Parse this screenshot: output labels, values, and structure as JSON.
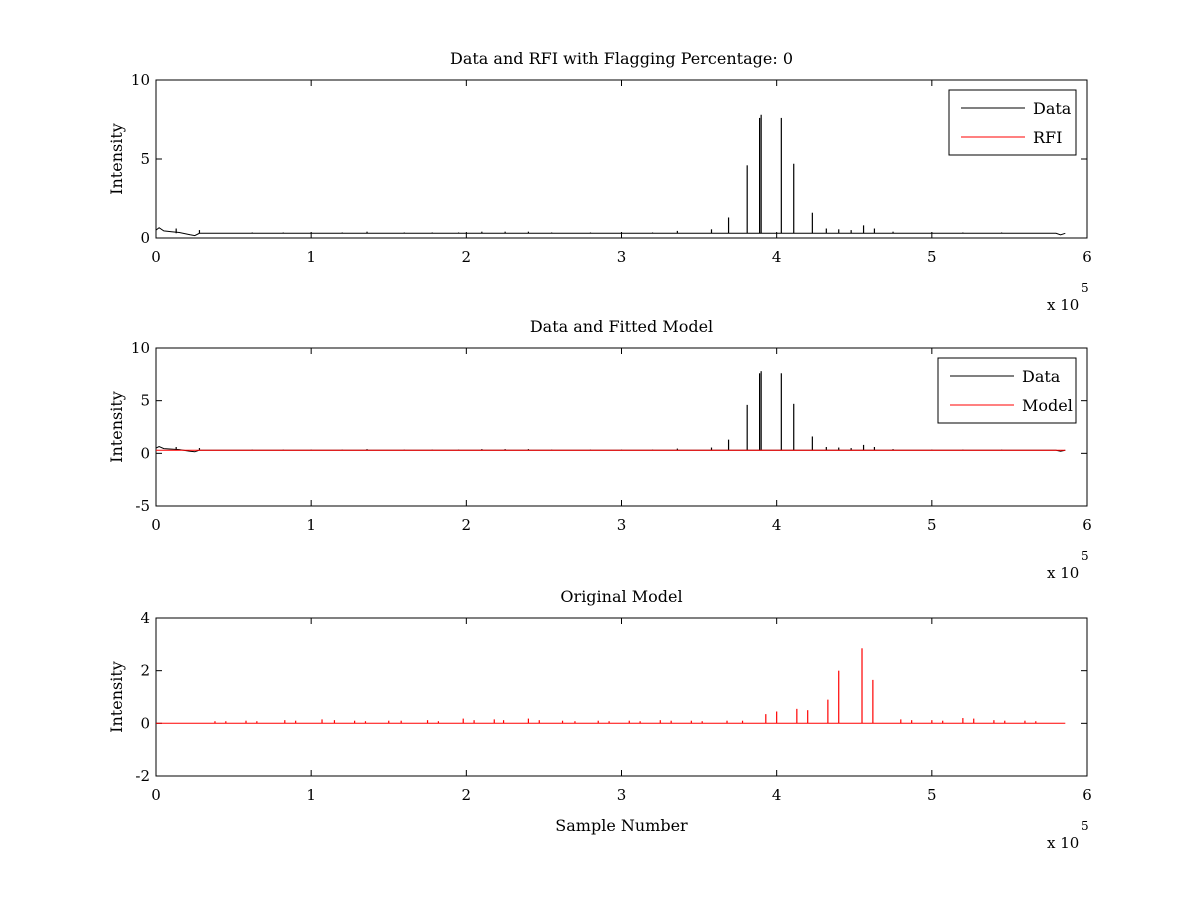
{
  "chart_data": [
    {
      "type": "line",
      "title": "Data and RFI with Flagging Percentage: 0",
      "xlabel": "",
      "ylabel": "Intensity",
      "xlim": [
        0,
        600000
      ],
      "ylim": [
        0,
        10
      ],
      "xticks": [
        0,
        1,
        2,
        3,
        4,
        5,
        6
      ],
      "yticks": [
        0,
        5,
        10
      ],
      "x_exponent_label": "x 10",
      "x_exponent_power": "5",
      "legend": "top-right",
      "grid": false,
      "series": [
        {
          "name": "Data",
          "color": "#000000",
          "baseline": 0.3,
          "points": [
            [
              0,
              0.5
            ],
            [
              2000,
              0.65
            ],
            [
              5000,
              0.45
            ],
            [
              10000,
              0.4
            ],
            [
              15000,
              0.35
            ],
            [
              22000,
              0.2
            ],
            [
              25000,
              0.15
            ],
            [
              28000,
              0.3
            ],
            [
              30000,
              0.3
            ],
            [
              580000,
              0.3
            ],
            [
              583000,
              0.2
            ],
            [
              586000,
              0.3
            ]
          ],
          "spikes": [
            [
              13000,
              0.6
            ],
            [
              28000,
              0.5
            ],
            [
              62000,
              0.35
            ],
            [
              82000,
              0.35
            ],
            [
              100000,
              0.35
            ],
            [
              120000,
              0.35
            ],
            [
              136000,
              0.4
            ],
            [
              160000,
              0.35
            ],
            [
              178000,
              0.35
            ],
            [
              195000,
              0.35
            ],
            [
              210000,
              0.4
            ],
            [
              225000,
              0.4
            ],
            [
              240000,
              0.4
            ],
            [
              255000,
              0.35
            ],
            [
              280000,
              0.35
            ],
            [
              300000,
              0.35
            ],
            [
              320000,
              0.35
            ],
            [
              336000,
              0.45
            ],
            [
              358000,
              0.55
            ],
            [
              369000,
              1.3
            ],
            [
              381000,
              4.6
            ],
            [
              389000,
              7.6
            ],
            [
              390000,
              7.8
            ],
            [
              403000,
              7.6
            ],
            [
              411000,
              4.7
            ],
            [
              423000,
              1.6
            ],
            [
              432000,
              0.6
            ],
            [
              440000,
              0.55
            ],
            [
              448000,
              0.5
            ],
            [
              456000,
              0.8
            ],
            [
              463000,
              0.6
            ],
            [
              475000,
              0.4
            ],
            [
              500000,
              0.35
            ],
            [
              520000,
              0.35
            ],
            [
              545000,
              0.35
            ]
          ]
        },
        {
          "name": "RFI",
          "color": "#ff0000",
          "baseline": 0,
          "points": [],
          "spikes": []
        }
      ]
    },
    {
      "type": "line",
      "title": "Data and Fitted Model",
      "xlabel": "",
      "ylabel": "Intensity",
      "xlim": [
        0,
        600000
      ],
      "ylim": [
        -5,
        10
      ],
      "xticks": [
        0,
        1,
        2,
        3,
        4,
        5,
        6
      ],
      "yticks": [
        -5,
        0,
        5,
        10
      ],
      "x_exponent_label": "x 10",
      "x_exponent_power": "5",
      "legend": "top-right",
      "grid": false,
      "series": [
        {
          "name": "Data",
          "color": "#000000",
          "baseline": 0.3,
          "points": [
            [
              0,
              0.5
            ],
            [
              2000,
              0.65
            ],
            [
              5000,
              0.45
            ],
            [
              10000,
              0.4
            ],
            [
              15000,
              0.35
            ],
            [
              22000,
              0.2
            ],
            [
              25000,
              0.15
            ],
            [
              28000,
              0.3
            ],
            [
              30000,
              0.3
            ],
            [
              580000,
              0.3
            ],
            [
              583000,
              0.2
            ],
            [
              586000,
              0.3
            ]
          ],
          "spikes": [
            [
              13000,
              0.6
            ],
            [
              28000,
              0.5
            ],
            [
              62000,
              0.35
            ],
            [
              82000,
              0.35
            ],
            [
              100000,
              0.35
            ],
            [
              120000,
              0.35
            ],
            [
              136000,
              0.4
            ],
            [
              160000,
              0.35
            ],
            [
              178000,
              0.35
            ],
            [
              195000,
              0.35
            ],
            [
              210000,
              0.4
            ],
            [
              225000,
              0.4
            ],
            [
              240000,
              0.4
            ],
            [
              255000,
              0.35
            ],
            [
              280000,
              0.35
            ],
            [
              300000,
              0.35
            ],
            [
              320000,
              0.35
            ],
            [
              336000,
              0.45
            ],
            [
              358000,
              0.55
            ],
            [
              369000,
              1.3
            ],
            [
              381000,
              4.6
            ],
            [
              389000,
              7.6
            ],
            [
              390000,
              7.8
            ],
            [
              403000,
              7.6
            ],
            [
              411000,
              4.7
            ],
            [
              423000,
              1.6
            ],
            [
              432000,
              0.6
            ],
            [
              440000,
              0.55
            ],
            [
              448000,
              0.5
            ],
            [
              456000,
              0.8
            ],
            [
              463000,
              0.6
            ],
            [
              475000,
              0.4
            ],
            [
              500000,
              0.35
            ],
            [
              520000,
              0.35
            ],
            [
              545000,
              0.35
            ]
          ]
        },
        {
          "name": "Model",
          "color": "#ff0000",
          "baseline": 0.3,
          "points": [
            [
              0,
              0.3
            ],
            [
              586000,
              0.3
            ]
          ],
          "spikes": []
        }
      ]
    },
    {
      "type": "line",
      "title": "Original Model",
      "xlabel": "Sample Number",
      "ylabel": "Intensity",
      "xlim": [
        0,
        600000
      ],
      "ylim": [
        -2,
        4
      ],
      "xticks": [
        0,
        1,
        2,
        3,
        4,
        5,
        6
      ],
      "yticks": [
        -2,
        0,
        2,
        4
      ],
      "x_exponent_label": "x 10",
      "x_exponent_power": "5",
      "legend": "none",
      "grid": false,
      "series": [
        {
          "name": "",
          "color": "#ff0000",
          "baseline": 0,
          "points": [
            [
              0,
              0
            ],
            [
              586000,
              0
            ]
          ],
          "spikes": [
            [
              38000,
              0.08
            ],
            [
              45000,
              0.08
            ],
            [
              58000,
              0.1
            ],
            [
              65000,
              0.08
            ],
            [
              83000,
              0.12
            ],
            [
              90000,
              0.1
            ],
            [
              107000,
              0.15
            ],
            [
              115000,
              0.12
            ],
            [
              128000,
              0.1
            ],
            [
              135000,
              0.08
            ],
            [
              150000,
              0.1
            ],
            [
              158000,
              0.1
            ],
            [
              175000,
              0.12
            ],
            [
              182000,
              0.08
            ],
            [
              198000,
              0.18
            ],
            [
              205000,
              0.12
            ],
            [
              218000,
              0.15
            ],
            [
              224000,
              0.12
            ],
            [
              240000,
              0.18
            ],
            [
              247000,
              0.12
            ],
            [
              262000,
              0.1
            ],
            [
              270000,
              0.08
            ],
            [
              285000,
              0.1
            ],
            [
              292000,
              0.08
            ],
            [
              305000,
              0.1
            ],
            [
              312000,
              0.08
            ],
            [
              325000,
              0.12
            ],
            [
              332000,
              0.1
            ],
            [
              345000,
              0.1
            ],
            [
              352000,
              0.08
            ],
            [
              368000,
              0.1
            ],
            [
              378000,
              0.1
            ],
            [
              393000,
              0.35
            ],
            [
              400000,
              0.45
            ],
            [
              413000,
              0.55
            ],
            [
              420000,
              0.5
            ],
            [
              433000,
              0.9
            ],
            [
              440000,
              2.0
            ],
            [
              455000,
              2.85
            ],
            [
              462000,
              1.65
            ],
            [
              480000,
              0.15
            ],
            [
              487000,
              0.12
            ],
            [
              500000,
              0.12
            ],
            [
              507000,
              0.1
            ],
            [
              520000,
              0.2
            ],
            [
              527000,
              0.18
            ],
            [
              540000,
              0.12
            ],
            [
              547000,
              0.1
            ],
            [
              560000,
              0.1
            ],
            [
              567000,
              0.08
            ]
          ]
        }
      ]
    }
  ]
}
